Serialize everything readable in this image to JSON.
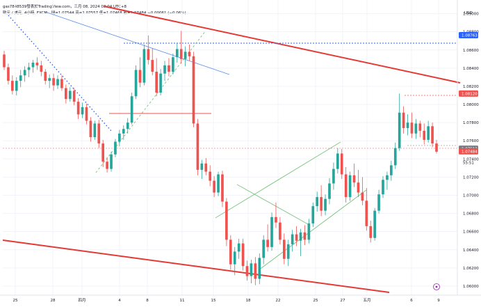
{
  "header": {
    "line1": "gas7848539發表於TradingView.com，三月 08, 2024 08:04 UTC+8",
    "line2_symbol": "歐元 / 美元, 4小時, FXCM",
    "line2_ohlc": "開=1.07544  高=1.07557  低=1.07468  收=1.07484  −0.00061 (−0.06%)"
  },
  "colors": {
    "up": "#26a69a",
    "down": "#ef5350",
    "trend_red": "#e53935",
    "channel_green": "#81c784",
    "line_blue": "#5b8def",
    "dot_blue": "#2962ff",
    "grid": "#f0f3fa",
    "axis_text": "#131722"
  },
  "chart_data": {
    "type": "candlestick",
    "currency_label": "USD",
    "ylim": [
      1.059,
      1.0915
    ],
    "yticks": [
      1.06,
      1.062,
      1.064,
      1.066,
      1.068,
      1.07,
      1.072,
      1.074,
      1.076,
      1.078,
      1.08,
      1.082,
      1.084,
      1.086,
      1.088,
      1.09
    ],
    "xtick_labels": [
      "25",
      "28",
      "四月",
      "4",
      "8",
      "11",
      "15",
      "18",
      "22",
      "25",
      "27",
      "五月",
      "6",
      "9"
    ],
    "price_tags": [
      {
        "value": 1.08763,
        "label": "1.08763",
        "style": "blue"
      },
      {
        "value": 1.0812,
        "label": "1.08120",
        "style": "red"
      },
      {
        "value": 1.07513,
        "label": "1.07513",
        "style": "grey"
      },
      {
        "value": 1.07484,
        "label": "1.07484",
        "style": "red"
      },
      {
        "value": 1.0736,
        "label": "55:51",
        "style": "plain"
      }
    ],
    "candles": [
      [
        1.0855,
        1.0859,
        1.0838,
        1.0841
      ],
      [
        1.0841,
        1.0845,
        1.0822,
        1.0826
      ],
      [
        1.0826,
        1.0832,
        1.0811,
        1.0815
      ],
      [
        1.0815,
        1.083,
        1.081,
        1.0826
      ],
      [
        1.0826,
        1.0838,
        1.0819,
        1.0832
      ],
      [
        1.0832,
        1.0842,
        1.0825,
        1.0838
      ],
      [
        1.0838,
        1.0846,
        1.083,
        1.0841
      ],
      [
        1.0841,
        1.0849,
        1.0835,
        1.0846
      ],
      [
        1.0846,
        1.0852,
        1.0838,
        1.0843
      ],
      [
        1.0843,
        1.0848,
        1.0831,
        1.0836
      ],
      [
        1.0836,
        1.0839,
        1.0822,
        1.0826
      ],
      [
        1.0826,
        1.0833,
        1.0818,
        1.0829
      ],
      [
        1.0829,
        1.0834,
        1.0815,
        1.0821
      ],
      [
        1.0821,
        1.0832,
        1.0817,
        1.0828
      ],
      [
        1.0828,
        1.0832,
        1.0815,
        1.0818
      ],
      [
        1.0818,
        1.0822,
        1.0801,
        1.0806
      ],
      [
        1.0806,
        1.0819,
        1.0803,
        1.0815
      ],
      [
        1.0815,
        1.0818,
        1.0799,
        1.0803
      ],
      [
        1.0803,
        1.0807,
        1.0784,
        1.0789
      ],
      [
        1.0789,
        1.0802,
        1.0785,
        1.0797
      ],
      [
        1.0797,
        1.0801,
        1.0778,
        1.0782
      ],
      [
        1.0782,
        1.0786,
        1.0759,
        1.0764
      ],
      [
        1.0764,
        1.0782,
        1.0761,
        1.0779
      ],
      [
        1.0779,
        1.0783,
        1.0752,
        1.0757
      ],
      [
        1.0757,
        1.0761,
        1.0731,
        1.0737
      ],
      [
        1.0737,
        1.0742,
        1.0725,
        1.0729
      ],
      [
        1.0729,
        1.0748,
        1.0726,
        1.0745
      ],
      [
        1.0745,
        1.0762,
        1.0742,
        1.0759
      ],
      [
        1.0759,
        1.0772,
        1.0754,
        1.0768
      ],
      [
        1.0768,
        1.0777,
        1.0761,
        1.0773
      ],
      [
        1.0773,
        1.0785,
        1.0768,
        1.078
      ],
      [
        1.078,
        1.0813,
        1.0778,
        1.0809
      ],
      [
        1.0809,
        1.0843,
        1.0806,
        1.0838
      ],
      [
        1.0838,
        1.0852,
        1.0819,
        1.0824
      ],
      [
        1.0824,
        1.0866,
        1.0821,
        1.0861
      ],
      [
        1.0861,
        1.0876,
        1.0844,
        1.0849
      ],
      [
        1.0849,
        1.0862,
        1.0832,
        1.0836
      ],
      [
        1.0836,
        1.0851,
        1.0809,
        1.0813
      ],
      [
        1.0813,
        1.0839,
        1.081,
        1.0834
      ],
      [
        1.0834,
        1.0848,
        1.0826,
        1.0843
      ],
      [
        1.0843,
        1.0851,
        1.0831,
        1.0836
      ],
      [
        1.0836,
        1.0856,
        1.0833,
        1.0852
      ],
      [
        1.0852,
        1.0867,
        1.0846,
        1.0861
      ],
      [
        1.0861,
        1.0881,
        1.0845,
        1.085
      ],
      [
        1.085,
        1.0864,
        1.0842,
        1.0858
      ],
      [
        1.0858,
        1.0866,
        1.0848,
        1.0853
      ],
      [
        1.0853,
        1.0858,
        1.0775,
        1.0779
      ],
      [
        1.0779,
        1.0784,
        1.0722,
        1.0728
      ],
      [
        1.0728,
        1.0739,
        1.0718,
        1.0735
      ],
      [
        1.0735,
        1.0741,
        1.0722,
        1.0726
      ],
      [
        1.0726,
        1.0733,
        1.071,
        1.0716
      ],
      [
        1.0716,
        1.0721,
        1.0698,
        1.0703
      ],
      [
        1.0703,
        1.0726,
        1.0699,
        1.0723
      ],
      [
        1.0723,
        1.0727,
        1.0687,
        1.0693
      ],
      [
        1.0693,
        1.0697,
        1.0644,
        1.0651
      ],
      [
        1.0651,
        1.0656,
        1.0618,
        1.0624
      ],
      [
        1.0624,
        1.0643,
        1.0612,
        1.0638
      ],
      [
        1.0638,
        1.0652,
        1.063,
        1.0647
      ],
      [
        1.0647,
        1.0652,
        1.0617,
        1.0622
      ],
      [
        1.0622,
        1.0628,
        1.0606,
        1.0611
      ],
      [
        1.0611,
        1.0629,
        1.0603,
        1.0625
      ],
      [
        1.0625,
        1.0632,
        1.0601,
        1.0608
      ],
      [
        1.0608,
        1.0636,
        1.0602,
        1.0631
      ],
      [
        1.0631,
        1.0656,
        1.0624,
        1.0651
      ],
      [
        1.0651,
        1.0668,
        1.0638,
        1.0643
      ],
      [
        1.0643,
        1.0681,
        1.0639,
        1.0676
      ],
      [
        1.0676,
        1.0692,
        1.0664,
        1.067
      ],
      [
        1.067,
        1.0676,
        1.0646,
        1.0651
      ],
      [
        1.0651,
        1.0658,
        1.0624,
        1.063
      ],
      [
        1.063,
        1.0651,
        1.0622,
        1.0646
      ],
      [
        1.0646,
        1.0662,
        1.0638,
        1.0657
      ],
      [
        1.0657,
        1.0666,
        1.0644,
        1.065
      ],
      [
        1.065,
        1.0663,
        1.0633,
        1.0659
      ],
      [
        1.0659,
        1.0667,
        1.0645,
        1.0651
      ],
      [
        1.0651,
        1.0674,
        1.0647,
        1.0669
      ],
      [
        1.0669,
        1.0692,
        1.0665,
        1.0688
      ],
      [
        1.0688,
        1.0704,
        1.0682,
        1.0698
      ],
      [
        1.0698,
        1.0711,
        1.0677,
        1.0683
      ],
      [
        1.0683,
        1.0701,
        1.0678,
        1.0696
      ],
      [
        1.0696,
        1.0719,
        1.069,
        1.0713
      ],
      [
        1.0713,
        1.0736,
        1.0706,
        1.0729
      ],
      [
        1.0729,
        1.0752,
        1.0724,
        1.0746
      ],
      [
        1.0746,
        1.0751,
        1.0718,
        1.0723
      ],
      [
        1.0723,
        1.0731,
        1.0692,
        1.0698
      ],
      [
        1.0698,
        1.0726,
        1.0694,
        1.0722
      ],
      [
        1.0722,
        1.0735,
        1.0709,
        1.0714
      ],
      [
        1.0714,
        1.0728,
        1.0698,
        1.0703
      ],
      [
        1.0703,
        1.072,
        1.0689,
        1.0694
      ],
      [
        1.0694,
        1.0708,
        1.0661,
        1.0666
      ],
      [
        1.0666,
        1.0672,
        1.0648,
        1.0653
      ],
      [
        1.0653,
        1.0686,
        1.065,
        1.0683
      ],
      [
        1.0683,
        1.0706,
        1.068,
        1.0701
      ],
      [
        1.0701,
        1.0721,
        1.0697,
        1.0717
      ],
      [
        1.0717,
        1.0726,
        1.0706,
        1.0722
      ],
      [
        1.0722,
        1.0738,
        1.0716,
        1.0733
      ],
      [
        1.0733,
        1.0758,
        1.0729,
        1.0752
      ],
      [
        1.0752,
        1.0812,
        1.0749,
        1.0791
      ],
      [
        1.0791,
        1.0798,
        1.0768,
        1.0774
      ],
      [
        1.0774,
        1.0789,
        1.0766,
        1.078
      ],
      [
        1.078,
        1.0791,
        1.0763,
        1.0768
      ],
      [
        1.0768,
        1.0784,
        1.0762,
        1.0779
      ],
      [
        1.0779,
        1.0782,
        1.0764,
        1.0771
      ],
      [
        1.0771,
        1.0779,
        1.0756,
        1.0761
      ],
      [
        1.0761,
        1.0782,
        1.0758,
        1.0776
      ],
      [
        1.0776,
        1.078,
        1.0753,
        1.0757
      ],
      [
        1.0757,
        1.0761,
        1.0746,
        1.0748
      ]
    ]
  }
}
